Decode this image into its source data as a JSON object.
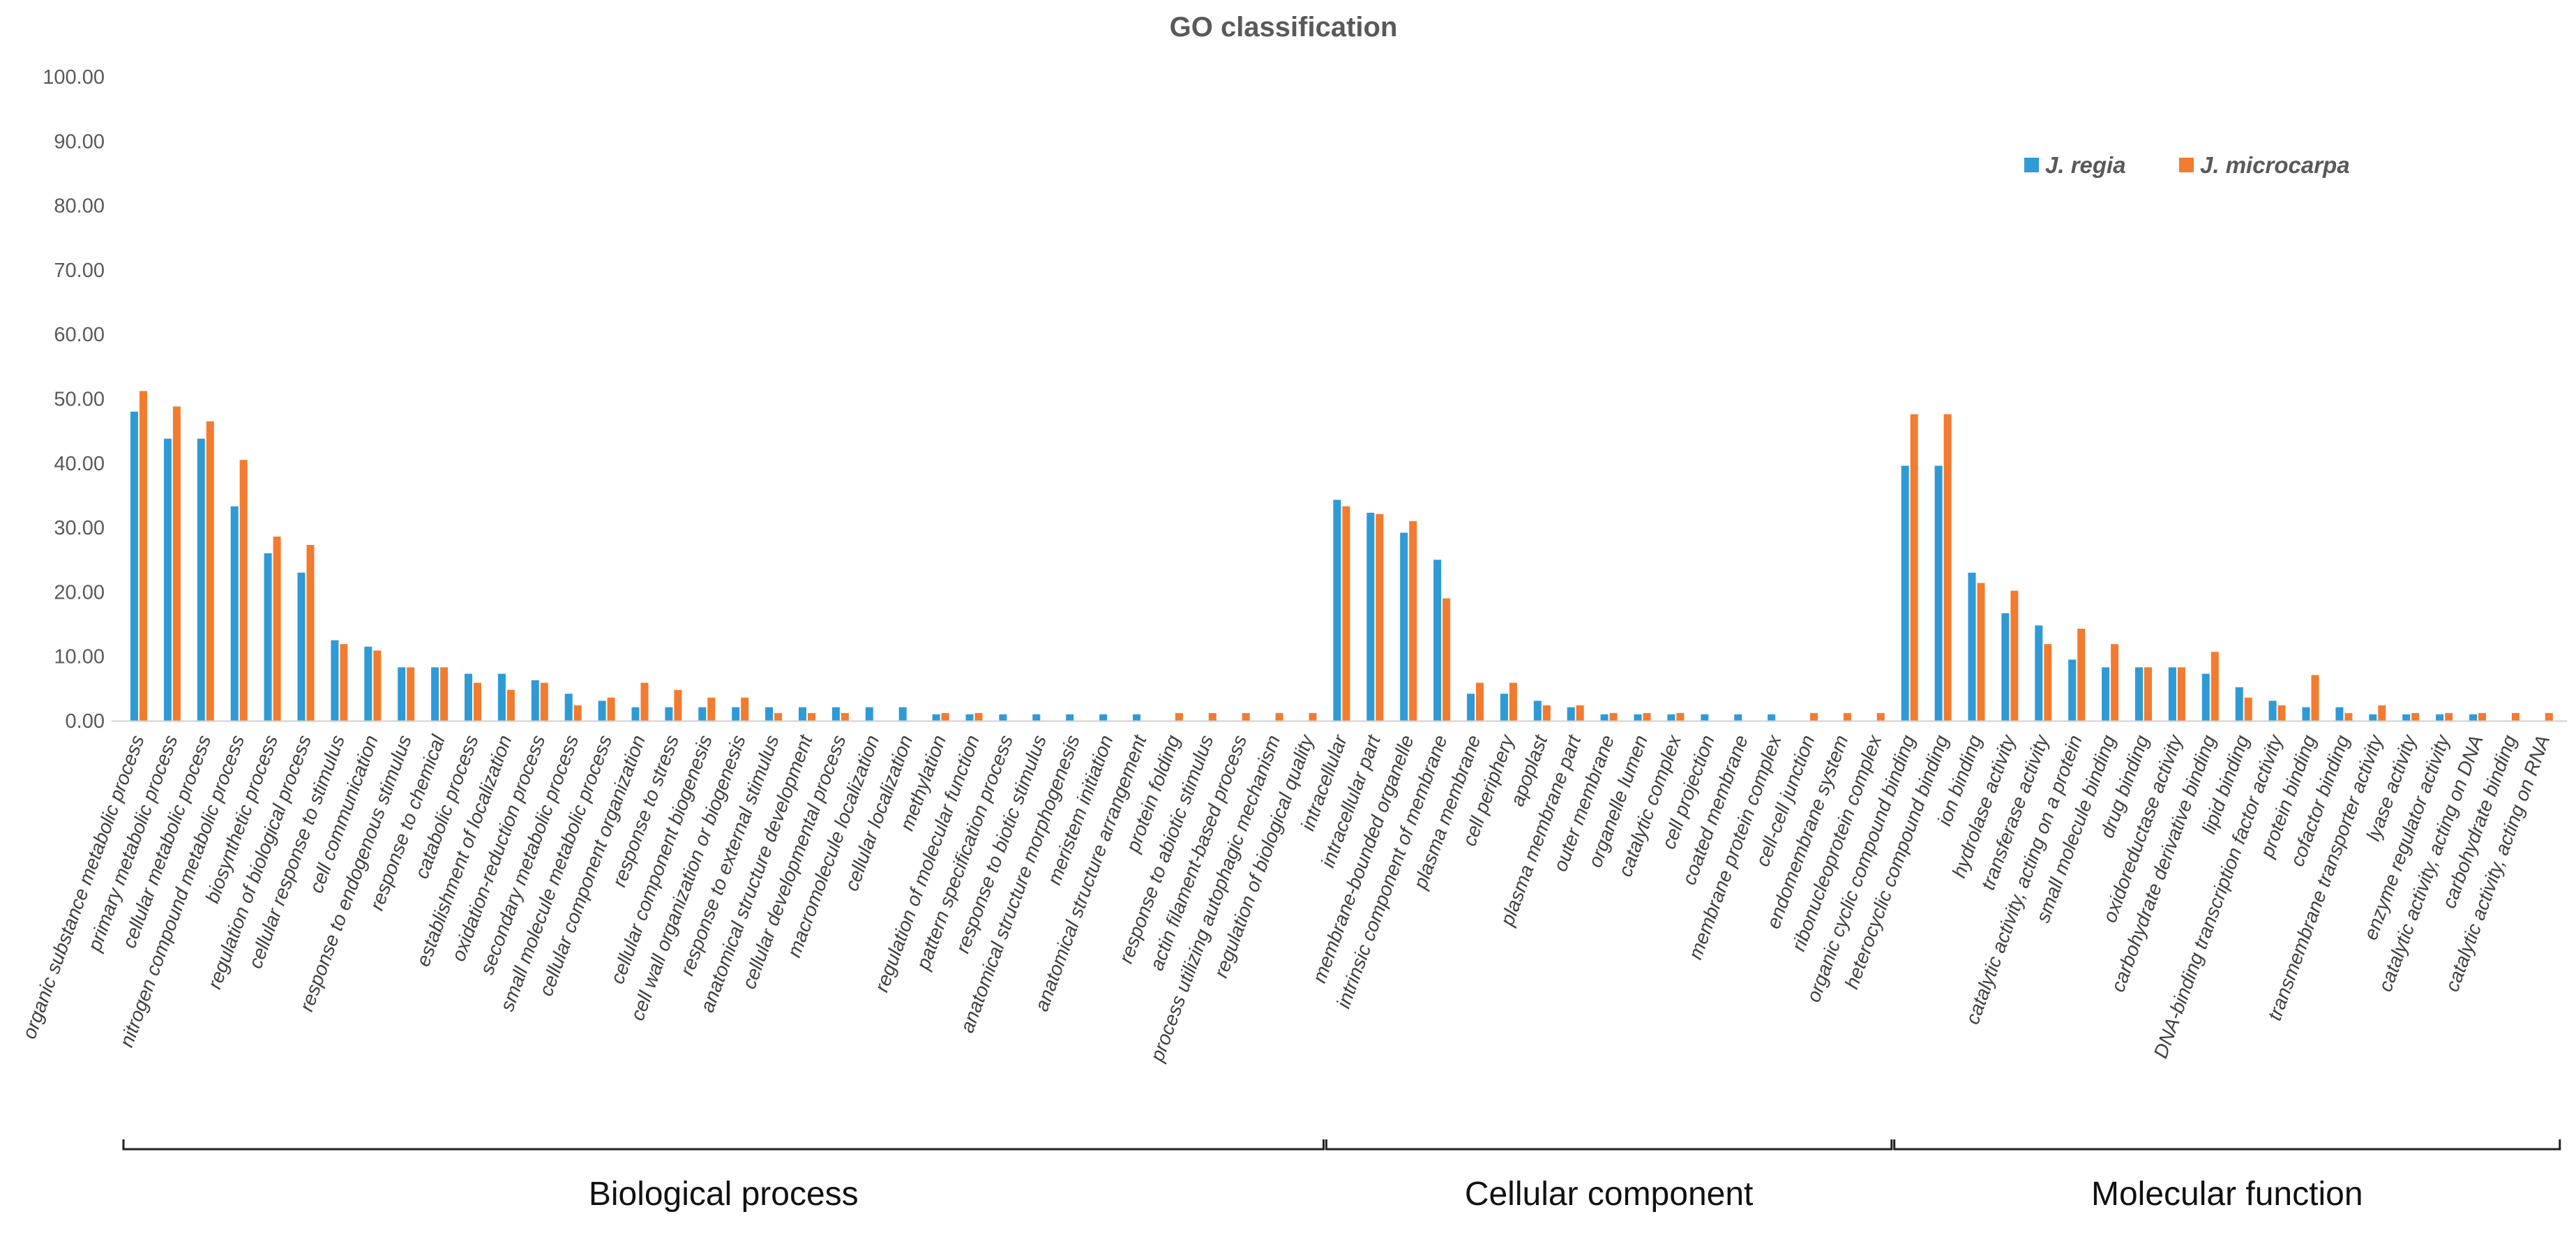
{
  "chart_data": {
    "type": "bar",
    "title": "GO classification",
    "xlabel": "",
    "ylabel": "",
    "ylim": [
      0,
      100
    ],
    "yticks": [
      "0.00",
      "10.00",
      "20.00",
      "30.00",
      "40.00",
      "50.00",
      "60.00",
      "70.00",
      "80.00",
      "90.00",
      "100.00"
    ],
    "legend_position": "top-right",
    "categories": [
      "organic substance metabolic process",
      "primary metabolic process",
      "cellular metabolic process",
      "nitrogen compound metabolic process",
      "biosynthetic process",
      "regulation of biological process",
      "cellular response to stimulus",
      "cell communication",
      "response to endogenous stimulus",
      "response to chemical",
      "catabolic process",
      "establishment of localization",
      "oxidation-reduction process",
      "secondary metabolic process",
      "small molecule metabolic process",
      "cellular component organization",
      "response to stress",
      "cellular component biogenesis",
      "cell wall organization or biogenesis",
      "response to external stimulus",
      "anatomical structure development",
      "cellular developmental process",
      "macromolecule localization",
      "cellular localization",
      "methylation",
      "regulation of molecular function",
      "pattern specification process",
      "response to biotic stimulus",
      "anatomical structure morphogenesis",
      "meristem initiation",
      "anatomical structure arrangement",
      "protein folding",
      "response to abiotic stimulus",
      "actin filament-based process",
      "process utilizing autophagic mechanism",
      "regulation of biological quality",
      "intracellular",
      "intracellular part",
      "membrane-bounded organelle",
      "intrinsic component of membrane",
      "plasma membrane",
      "cell periphery",
      "apoplast",
      "plasma membrane part",
      "outer membrane",
      "organelle lumen",
      "catalytic complex",
      "cell projection",
      "coated membrane",
      "membrane protein complex",
      "cell-cell junction",
      "endomembrane system",
      "ribonucleoprotein complex",
      "organic cyclic compound binding",
      "heterocyclic compound binding",
      "ion binding",
      "hydrolase activity",
      "transferase activity",
      "catalytic activity, acting on a protein",
      "small molecule binding",
      "drug binding",
      "oxidoreductase activity",
      "carbohydrate derivative binding",
      "lipid binding",
      "DNA-binding transcription factor activity",
      "protein binding",
      "cofactor binding",
      "transmembrane transporter activity",
      "lyase activity",
      "enzyme regulator activity",
      "catalytic activity, acting on DNA",
      "carbohydrate binding",
      "catalytic activity, acting on RNA"
    ],
    "series": [
      {
        "name": "J. regia",
        "color": "#2E9AD6",
        "values": [
          48.0,
          43.8,
          43.8,
          33.3,
          26.0,
          23.0,
          12.5,
          11.5,
          8.3,
          8.3,
          7.3,
          7.3,
          6.3,
          4.2,
          3.1,
          2.1,
          2.1,
          2.1,
          2.1,
          2.1,
          2.1,
          2.1,
          2.1,
          2.1,
          1.0,
          1.0,
          1.0,
          1.0,
          1.0,
          1.0,
          1.0,
          0.0,
          0.0,
          0.0,
          0.0,
          0.0,
          34.3,
          32.3,
          29.2,
          25.0,
          4.2,
          4.2,
          3.1,
          2.1,
          1.0,
          1.0,
          1.0,
          1.0,
          1.0,
          1.0,
          0.0,
          0.0,
          0.0,
          39.6,
          39.6,
          23.0,
          16.7,
          14.8,
          9.5,
          8.3,
          8.3,
          8.3,
          7.3,
          5.2,
          3.1,
          2.1,
          2.1,
          1.0,
          1.0,
          1.0,
          1.0,
          0.0,
          0.0
        ]
      },
      {
        "name": "J. microcarpa",
        "color": "#F27B30",
        "values": [
          51.2,
          48.8,
          46.5,
          40.5,
          28.6,
          27.3,
          11.9,
          10.9,
          8.3,
          8.3,
          5.9,
          4.8,
          5.9,
          2.4,
          3.6,
          5.9,
          4.8,
          3.6,
          3.6,
          1.2,
          1.2,
          1.2,
          0.0,
          0.0,
          1.2,
          1.2,
          0.0,
          0.0,
          0.0,
          0.0,
          0.0,
          1.2,
          1.2,
          1.2,
          1.2,
          1.2,
          33.3,
          32.1,
          31.0,
          19.0,
          5.9,
          5.9,
          2.4,
          2.4,
          1.2,
          1.2,
          1.2,
          0.0,
          0.0,
          0.0,
          1.2,
          1.2,
          1.2,
          47.6,
          47.6,
          21.4,
          20.2,
          11.9,
          14.3,
          11.9,
          8.3,
          8.3,
          10.7,
          3.6,
          2.4,
          7.1,
          1.2,
          2.4,
          1.2,
          1.2,
          1.2,
          1.2,
          1.2
        ]
      }
    ],
    "groups": [
      {
        "label": "Biological process",
        "start": 0,
        "end": 35
      },
      {
        "label": "Cellular component",
        "start": 36,
        "end": 52
      },
      {
        "label": "Molecular function",
        "start": 53,
        "end": 72
      }
    ]
  }
}
